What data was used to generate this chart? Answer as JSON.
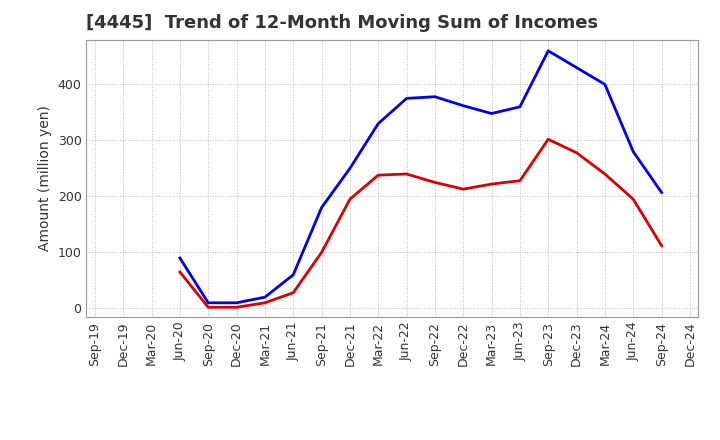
{
  "title": "[4445]  Trend of 12-Month Moving Sum of Incomes",
  "ylabel": "Amount (million yen)",
  "background_color": "#ffffff",
  "grid_color": "#bbbbbb",
  "ylim": [
    -15,
    480
  ],
  "yticks": [
    0,
    100,
    200,
    300,
    400
  ],
  "x_labels": [
    "Sep-19",
    "Dec-19",
    "Mar-20",
    "Jun-20",
    "Sep-20",
    "Dec-20",
    "Mar-21",
    "Jun-21",
    "Sep-21",
    "Dec-21",
    "Mar-22",
    "Jun-22",
    "Sep-22",
    "Dec-22",
    "Mar-23",
    "Jun-23",
    "Sep-23",
    "Dec-23",
    "Mar-24",
    "Jun-24",
    "Sep-24",
    "Dec-24"
  ],
  "ordinary_income": [
    null,
    null,
    null,
    90,
    10,
    10,
    20,
    60,
    180,
    250,
    330,
    375,
    378,
    362,
    348,
    360,
    460,
    430,
    400,
    280,
    207,
    null
  ],
  "net_income": [
    null,
    null,
    null,
    65,
    2,
    2,
    10,
    28,
    100,
    195,
    238,
    240,
    225,
    213,
    222,
    228,
    302,
    278,
    240,
    195,
    112,
    null
  ],
  "ordinary_color": "#0000ee",
  "net_color": "#dd0000",
  "line_width": 2.0,
  "title_fontsize": 13,
  "label_fontsize": 10,
  "tick_fontsize": 9,
  "spine_color": "#999999",
  "title_color": "#333333"
}
